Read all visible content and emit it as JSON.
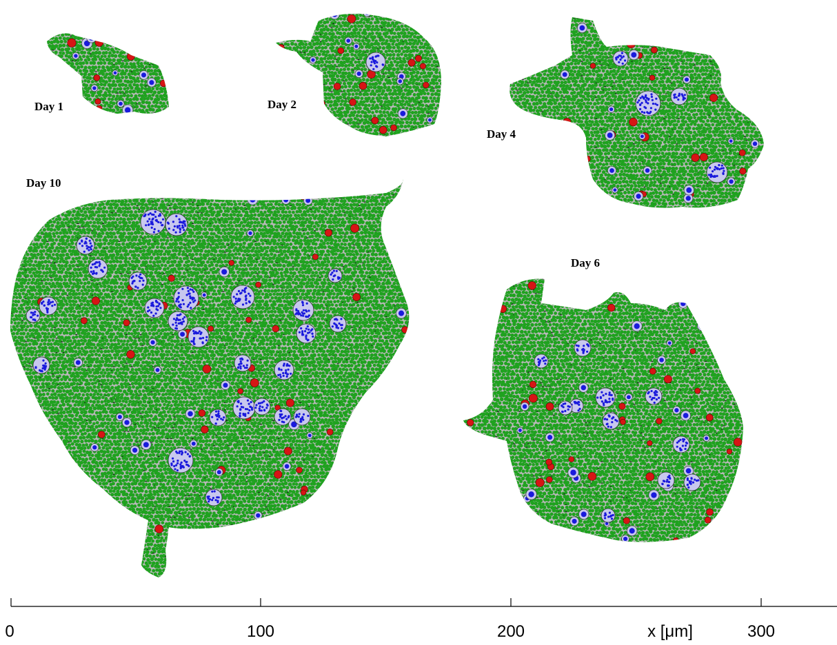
{
  "figure": {
    "day_labels": [
      "Day 1",
      "Day 2",
      "Day 4",
      "Day 10",
      "Day 6"
    ],
    "axis": {
      "label": "x [μm]",
      "ticks": [
        "0",
        "100",
        "200",
        "300"
      ]
    },
    "colors": {
      "normal_cell": "#1fa21f",
      "quiescent_cell": "#d61515",
      "stem_cell": "#1a1adc",
      "cluster_fill": "#c8c8ee",
      "background_debris": "#b8b8b8",
      "matrix_dark": "#1a1a1a"
    }
  }
}
